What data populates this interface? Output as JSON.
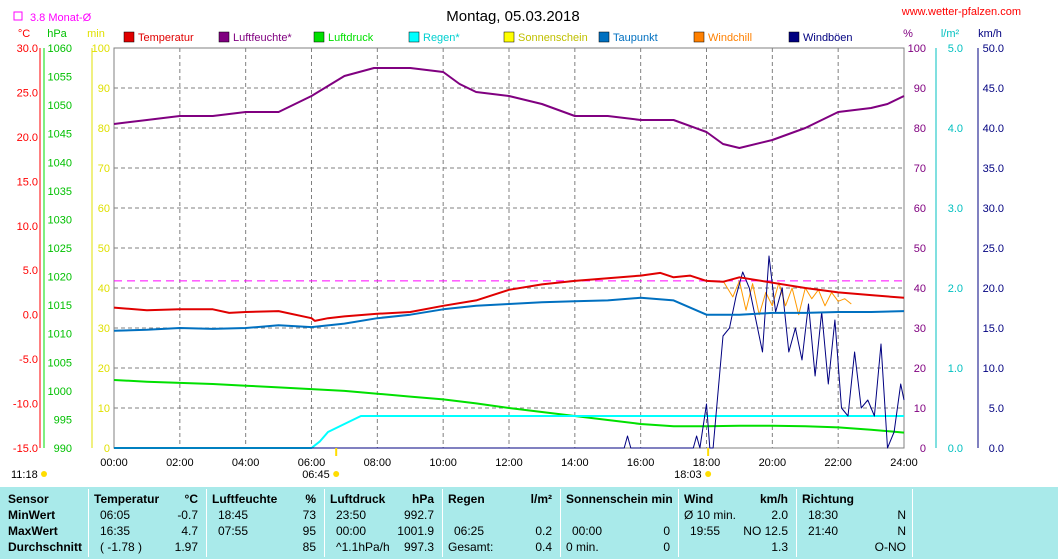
{
  "title": "Montag, 05.03.2018",
  "website": "www.wetter-pfalzen.com",
  "monthly_avg_label": "3.8 Monat-Ø",
  "units": {
    "temp": "°C",
    "pressure": "hPa",
    "minutes": "min",
    "percent": "%",
    "rain": "l/m²",
    "wind": "km/h"
  },
  "legend": [
    {
      "label": "Temperatur",
      "color": "#e00000"
    },
    {
      "label": "Luftfeuchte*",
      "color": "#800080"
    },
    {
      "label": "Luftdruck",
      "color": "#00e000"
    },
    {
      "label": "Regen*",
      "color": "#00ffff"
    },
    {
      "label": "Sonnenschein",
      "color": "#ffff00"
    },
    {
      "label": "Taupunkt",
      "color": "#0070c0"
    },
    {
      "label": "Windchill",
      "color": "#ff8000"
    },
    {
      "label": "Windböen",
      "color": "#000080"
    }
  ],
  "axes": {
    "temp_ticks": [
      "30.0",
      "25.0",
      "20.0",
      "15.0",
      "10.0",
      "5.0",
      "0.0",
      "-5.0",
      "-10.0",
      "-15.0"
    ],
    "pressure_ticks": [
      "1060",
      "1055",
      "1050",
      "1045",
      "1040",
      "1035",
      "1030",
      "1025",
      "1020",
      "1015",
      "1010",
      "1005",
      "1000",
      "995",
      "990"
    ],
    "minutes_ticks": [
      "100",
      "90",
      "80",
      "70",
      "60",
      "50",
      "40",
      "30",
      "20",
      "10",
      "0"
    ],
    "percent_ticks": [
      "100",
      "90",
      "80",
      "70",
      "60",
      "50",
      "40",
      "30",
      "20",
      "10",
      "0"
    ],
    "rain_ticks": [
      "5.0",
      "4.0",
      "3.0",
      "2.0",
      "1.0",
      "0.0"
    ],
    "wind_ticks": [
      "50.0",
      "45.0",
      "40.0",
      "35.0",
      "30.0",
      "25.0",
      "20.0",
      "15.0",
      "10.0",
      "5.0",
      "0.0"
    ],
    "x_ticks": [
      "00:00",
      "02:00",
      "04:00",
      "06:00",
      "08:00",
      "10:00",
      "12:00",
      "14:00",
      "16:00",
      "18:00",
      "20:00",
      "22:00",
      "24:00"
    ]
  },
  "time_markers": {
    "moon_left": "11:18",
    "sunrise": "06:45",
    "sunset": "18:03"
  },
  "chart_data": {
    "type": "line",
    "x_unit": "hour of day",
    "xlim": [
      0,
      24
    ],
    "monthly_avg_temp": 3.8,
    "series": [
      {
        "name": "Temperatur",
        "axis": "temp",
        "ylim": [
          -15,
          30
        ],
        "x": [
          0,
          1,
          2,
          3,
          3.5,
          4,
          5,
          6,
          6.1,
          6.5,
          7,
          8,
          9,
          10,
          11,
          12,
          13,
          14,
          15,
          16,
          16.6,
          17,
          17.5,
          18,
          18.5,
          19,
          20,
          21,
          22,
          23,
          24
        ],
        "y": [
          0.8,
          0.5,
          0.6,
          0.6,
          0.2,
          0.3,
          0.4,
          -0.4,
          -0.7,
          -0.4,
          -0.2,
          0.1,
          0.3,
          1.0,
          1.6,
          2.8,
          3.4,
          3.8,
          4.1,
          4.4,
          4.7,
          4.2,
          4.4,
          3.8,
          3.7,
          4.2,
          3.6,
          3.0,
          2.5,
          2.2,
          1.9
        ]
      },
      {
        "name": "Luftfeuchte*",
        "axis": "percent",
        "ylim": [
          0,
          100
        ],
        "x": [
          0,
          1,
          2,
          3,
          4,
          5,
          6,
          7,
          7.9,
          8.5,
          9,
          10,
          10.5,
          11,
          12,
          13,
          14,
          15,
          16,
          17,
          18,
          18.5,
          19,
          20,
          21,
          22,
          23,
          23.5,
          24
        ],
        "y": [
          81,
          82,
          83,
          83,
          84,
          84,
          88,
          93,
          95,
          95,
          95,
          94,
          91,
          89,
          88,
          86,
          83,
          83,
          82,
          82,
          79,
          76,
          75,
          77,
          80,
          84,
          85,
          86,
          88
        ]
      },
      {
        "name": "Luftdruck",
        "axis": "pressure",
        "ylim": [
          990,
          1060
        ],
        "x": [
          0,
          1,
          2,
          3,
          4,
          5,
          6,
          7,
          8,
          9,
          10,
          11,
          12,
          13,
          14,
          15,
          16,
          17,
          18,
          19,
          20,
          21,
          22,
          23,
          24
        ],
        "y": [
          1001.9,
          1001.6,
          1001.4,
          1001.2,
          1000.9,
          1000.6,
          1000.3,
          1000.0,
          999.5,
          999.0,
          998.5,
          997.8,
          997.0,
          996.3,
          995.6,
          994.9,
          994.2,
          993.8,
          993.8,
          993.9,
          993.9,
          993.8,
          993.6,
          993.2,
          992.7
        ]
      },
      {
        "name": "Regen*",
        "axis": "rain",
        "ylim": [
          0,
          5
        ],
        "x": [
          0,
          6,
          6.25,
          6.5,
          7,
          7.5,
          8,
          10,
          12,
          14,
          16,
          18,
          20,
          22,
          24
        ],
        "y": [
          0,
          0,
          0.08,
          0.2,
          0.3,
          0.4,
          0.4,
          0.4,
          0.4,
          0.4,
          0.4,
          0.4,
          0.4,
          0.4,
          0.4
        ]
      },
      {
        "name": "Taupunkt",
        "axis": "temp",
        "ylim": [
          -15,
          30
        ],
        "x": [
          0,
          1,
          2,
          3,
          4,
          5,
          6,
          7,
          8,
          9,
          10,
          11,
          12,
          13,
          14,
          15,
          16,
          17,
          18,
          19,
          20,
          21,
          22,
          23,
          24
        ],
        "y": [
          -1.8,
          -1.7,
          -1.5,
          -1.6,
          -1.5,
          -1.2,
          -1.4,
          -1.0,
          -0.4,
          0.0,
          0.6,
          1.0,
          1.2,
          1.4,
          1.5,
          1.6,
          1.9,
          1.6,
          0.0,
          0.0,
          0.2,
          0.2,
          0.3,
          0.3,
          0.4
        ]
      },
      {
        "name": "Windchill",
        "axis": "temp",
        "ylim": [
          -15,
          30
        ],
        "x": [
          18.5,
          18.8,
          19.0,
          19.2,
          19.4,
          19.6,
          19.8,
          20.0,
          20.2,
          20.4,
          20.6,
          20.8,
          21.0,
          21.2,
          21.4,
          21.6,
          21.8,
          22.0,
          22.2,
          22.4
        ],
        "y": [
          3.8,
          2.0,
          3.8,
          0.5,
          3.5,
          0.0,
          2.5,
          1.0,
          3.6,
          1.0,
          3.0,
          0.0,
          3.0,
          1.8,
          2.8,
          1.0,
          2.5,
          1.5,
          1.8,
          1.2
        ]
      },
      {
        "name": "Windböen",
        "axis": "wind",
        "ylim": [
          0,
          50
        ],
        "x": [
          0,
          15.5,
          15.6,
          15.7,
          17.6,
          17.7,
          17.8,
          18.0,
          18.1,
          18.2,
          18.5,
          18.7,
          18.9,
          19.1,
          19.3,
          19.5,
          19.7,
          19.9,
          20.1,
          20.3,
          20.5,
          20.7,
          20.9,
          21.1,
          21.3,
          21.5,
          21.7,
          21.9,
          22.1,
          22.3,
          22.5,
          22.7,
          22.9,
          23.1,
          23.3,
          23.5,
          23.7,
          23.9,
          24.0
        ],
        "y": [
          0,
          0,
          1.5,
          0,
          0,
          1.5,
          0,
          5.5,
          0,
          0,
          14,
          15,
          19,
          22,
          20,
          16,
          12,
          24,
          17,
          20,
          12,
          15,
          11,
          18,
          9,
          17,
          8,
          16,
          5,
          4,
          12,
          5,
          6,
          4,
          13,
          0,
          2,
          8,
          6
        ]
      }
    ]
  },
  "stats": {
    "headers": {
      "sensor": "Sensor",
      "temp": "Temperatur",
      "temp_unit": "°C",
      "hum": "Luftfeuchte",
      "hum_unit": "%",
      "press": "Luftdruck",
      "press_unit": "hPa",
      "rain": "Regen",
      "rain_unit": "l/m²",
      "sun": "Sonnenschein min",
      "wind": "Wind",
      "wind_unit": "km/h",
      "dir": "Richtung"
    },
    "rows": [
      {
        "label": "MinWert",
        "temp_time": "06:05",
        "temp_val": "-0.7",
        "hum_time": "18:45",
        "hum_val": "73",
        "press_time": "23:50",
        "press_val": "992.7",
        "rain_time": "",
        "rain_val": "",
        "sun_time": "",
        "sun_val": "",
        "wind_time": "Ø 10 min.",
        "wind_val": "2.0",
        "dir_time": "18:30",
        "dir_val": "N"
      },
      {
        "label": "MaxWert",
        "temp_time": "16:35",
        "temp_val": "4.7",
        "hum_time": "07:55",
        "hum_val": "95",
        "press_time": "00:00",
        "press_val": "1001.9",
        "rain_time": "06:25",
        "rain_val": "0.2",
        "sun_time": "00:00",
        "sun_val": "0",
        "wind_time": "19:55",
        "wind_val": "NO 12.5",
        "dir_time": "21:40",
        "dir_val": "N"
      },
      {
        "label": "Durchschnitt",
        "temp_time": "( -1.78 )",
        "temp_val": "1.97",
        "hum_time": "",
        "hum_val": "85",
        "press_time": "^1.1hPa/h",
        "press_val": "997.3",
        "rain_time": "Gesamt:",
        "rain_val": "0.4",
        "sun_time": "0 min.",
        "sun_val": "0",
        "wind_time": "",
        "wind_val": "1.3",
        "dir_time": "",
        "dir_val": "O-NO"
      }
    ]
  }
}
